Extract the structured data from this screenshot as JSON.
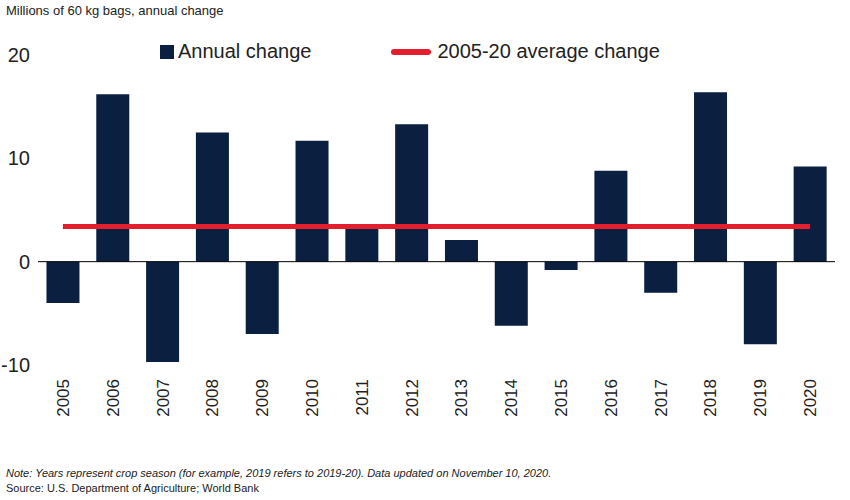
{
  "chart_data": {
    "type": "bar",
    "y_label": "Millions of 60 kg bags, annual change",
    "categories": [
      "2005",
      "2006",
      "2007",
      "2008",
      "2009",
      "2010",
      "2011",
      "2012",
      "2013",
      "2014",
      "2015",
      "2016",
      "2017",
      "2018",
      "2019",
      "2020"
    ],
    "series": [
      {
        "name": "Annual change",
        "type": "bar",
        "color": "#0b1f40",
        "values": [
          -4.0,
          16.2,
          -9.7,
          12.5,
          -7.0,
          11.7,
          3.3,
          13.3,
          2.1,
          -6.2,
          -0.8,
          8.8,
          -3.0,
          16.4,
          -8.0,
          9.2
        ]
      },
      {
        "name": "2005-20 average change",
        "type": "line",
        "color": "#e31e2d",
        "values": [
          3.4,
          3.4,
          3.4,
          3.4,
          3.4,
          3.4,
          3.4,
          3.4,
          3.4,
          3.4,
          3.4,
          3.4,
          3.4,
          3.4,
          3.4,
          3.4
        ]
      }
    ],
    "ylim": [
      -10,
      20
    ],
    "yticks": [
      -10,
      0,
      10,
      20
    ],
    "grid": false,
    "legend": "top",
    "note": "Note: Years represent crop season (for example, 2019 refers to 2019-20). Data updated on November 10, 2020.",
    "source": "Source: U.S. Department of Agriculture; World Bank"
  }
}
